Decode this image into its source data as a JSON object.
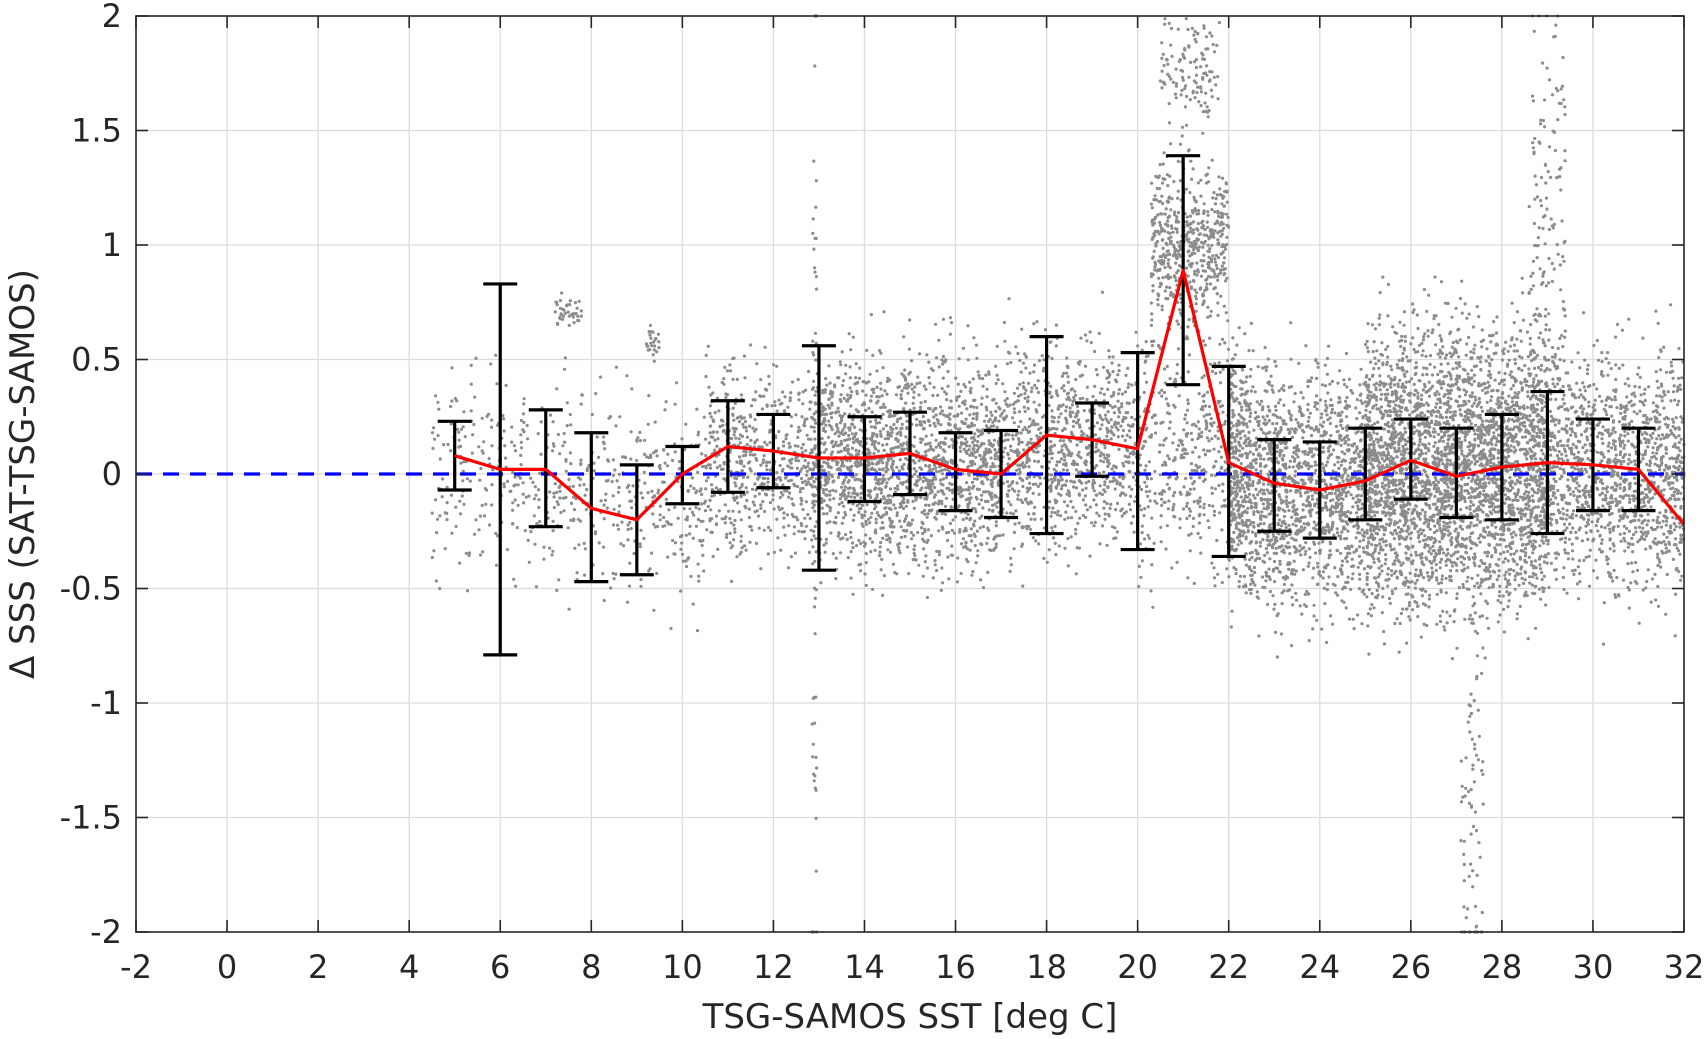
{
  "chart_data": {
    "type": "scatter",
    "title": "",
    "xlabel": "TSG-SAMOS SST [deg C]",
    "ylabel": "Δ SSS (SAT-TSG-SAMOS)",
    "xlim": [
      -2,
      32
    ],
    "ylim": [
      -2,
      2
    ],
    "grid": true,
    "legend": "none",
    "x_ticks": [
      "-2",
      "0",
      "2",
      "4",
      "6",
      "8",
      "10",
      "12",
      "14",
      "16",
      "18",
      "20",
      "22",
      "24",
      "26",
      "28",
      "30",
      "32"
    ],
    "y_ticks": [
      "2",
      "1.5",
      "1",
      "0.5",
      "0",
      "-0.5",
      "-1",
      "-1.5",
      "-2"
    ],
    "colors": {
      "scatter": "#8c8c8c",
      "mean_line": "#ff0000",
      "error_bars": "#000000",
      "zero_reference": "#0000ff",
      "axes": "#262626",
      "grid": "#dcdcdc"
    },
    "reference_line": {
      "y": 0,
      "style": "dashed"
    },
    "mean_line": {
      "x": [
        5,
        6,
        7,
        8,
        9,
        10,
        11,
        12,
        13,
        14,
        15,
        16,
        17,
        18,
        19,
        20,
        21,
        22,
        23,
        24,
        25,
        26,
        27,
        28,
        29,
        30,
        31,
        32
      ],
      "y": [
        0.08,
        0.02,
        0.02,
        -0.15,
        -0.2,
        0.0,
        0.12,
        0.1,
        0.07,
        0.07,
        0.09,
        0.02,
        0.0,
        0.17,
        0.15,
        0.11,
        0.89,
        0.05,
        -0.04,
        -0.07,
        -0.03,
        0.06,
        -0.01,
        0.03,
        0.05,
        0.04,
        0.02,
        -0.22
      ]
    },
    "error_bars": [
      {
        "x": 5,
        "low": -0.07,
        "high": 0.23
      },
      {
        "x": 6,
        "low": -0.79,
        "high": 0.83
      },
      {
        "x": 7,
        "low": -0.23,
        "high": 0.28
      },
      {
        "x": 8,
        "low": -0.47,
        "high": 0.18
      },
      {
        "x": 9,
        "low": -0.44,
        "high": 0.04
      },
      {
        "x": 10,
        "low": -0.13,
        "high": 0.12
      },
      {
        "x": 11,
        "low": -0.08,
        "high": 0.32
      },
      {
        "x": 12,
        "low": -0.06,
        "high": 0.26
      },
      {
        "x": 13,
        "low": -0.42,
        "high": 0.56
      },
      {
        "x": 14,
        "low": -0.12,
        "high": 0.25
      },
      {
        "x": 15,
        "low": -0.09,
        "high": 0.27
      },
      {
        "x": 16,
        "low": -0.16,
        "high": 0.18
      },
      {
        "x": 17,
        "low": -0.19,
        "high": 0.19
      },
      {
        "x": 18,
        "low": -0.26,
        "high": 0.6
      },
      {
        "x": 19,
        "low": -0.01,
        "high": 0.31
      },
      {
        "x": 20,
        "low": -0.33,
        "high": 0.53
      },
      {
        "x": 21,
        "low": 0.39,
        "high": 1.39
      },
      {
        "x": 22,
        "low": -0.36,
        "high": 0.47
      },
      {
        "x": 23,
        "low": -0.25,
        "high": 0.15
      },
      {
        "x": 24,
        "low": -0.28,
        "high": 0.14
      },
      {
        "x": 25,
        "low": -0.2,
        "high": 0.2
      },
      {
        "x": 26,
        "low": -0.11,
        "high": 0.24
      },
      {
        "x": 27,
        "low": -0.19,
        "high": 0.2
      },
      {
        "x": 28,
        "low": -0.2,
        "high": 0.26
      },
      {
        "x": 29,
        "low": -0.26,
        "high": 0.36
      },
      {
        "x": 30,
        "low": -0.16,
        "high": 0.24
      },
      {
        "x": 31,
        "low": -0.16,
        "high": 0.2
      },
      {
        "x": 32,
        "low": -0.21,
        "high": -0.21
      }
    ],
    "scatter_clusters": [
      {
        "x": [
          4.5,
          7.5
        ],
        "center": 0.0,
        "spread": 0.22,
        "count": 260
      },
      {
        "x": [
          7.5,
          10.5
        ],
        "center": -0.12,
        "spread": 0.22,
        "count": 300
      },
      {
        "x": [
          10.5,
          13
        ],
        "center": 0.06,
        "spread": 0.2,
        "count": 600
      },
      {
        "x": [
          13,
          17
        ],
        "center": 0.05,
        "spread": 0.22,
        "count": 1700
      },
      {
        "x": [
          17,
          20
        ],
        "center": 0.12,
        "spread": 0.22,
        "count": 900
      },
      {
        "x": [
          20.3,
          22
        ],
        "center": 1.0,
        "spread": 0.18,
        "count": 550
      },
      {
        "x": [
          20.5,
          21.8
        ],
        "center": 1.78,
        "spread": 0.12,
        "count": 120
      },
      {
        "x": [
          20,
          22.5
        ],
        "center": 0.1,
        "spread": 0.26,
        "count": 500
      },
      {
        "x": [
          22,
          25
        ],
        "center": -0.05,
        "spread": 0.26,
        "count": 1600
      },
      {
        "x": [
          25,
          29
        ],
        "center": 0.03,
        "spread": 0.3,
        "count": 3400
      },
      {
        "x": [
          29,
          32
        ],
        "center": 0.02,
        "spread": 0.24,
        "count": 1300
      },
      {
        "x": [
          7.2,
          7.8
        ],
        "center": 0.71,
        "spread": 0.03,
        "count": 40
      },
      {
        "x": [
          9.2,
          9.5
        ],
        "center": 0.58,
        "spread": 0.04,
        "count": 25
      },
      {
        "x": [
          12.85,
          12.95
        ],
        "center": 0.0,
        "spread": 1.4,
        "count": 70
      },
      {
        "x": [
          27.1,
          27.6
        ],
        "center": -1.45,
        "spread": 0.5,
        "count": 80
      },
      {
        "x": [
          28.6,
          29.4
        ],
        "center": 1.1,
        "spread": 0.55,
        "count": 160
      }
    ]
  }
}
